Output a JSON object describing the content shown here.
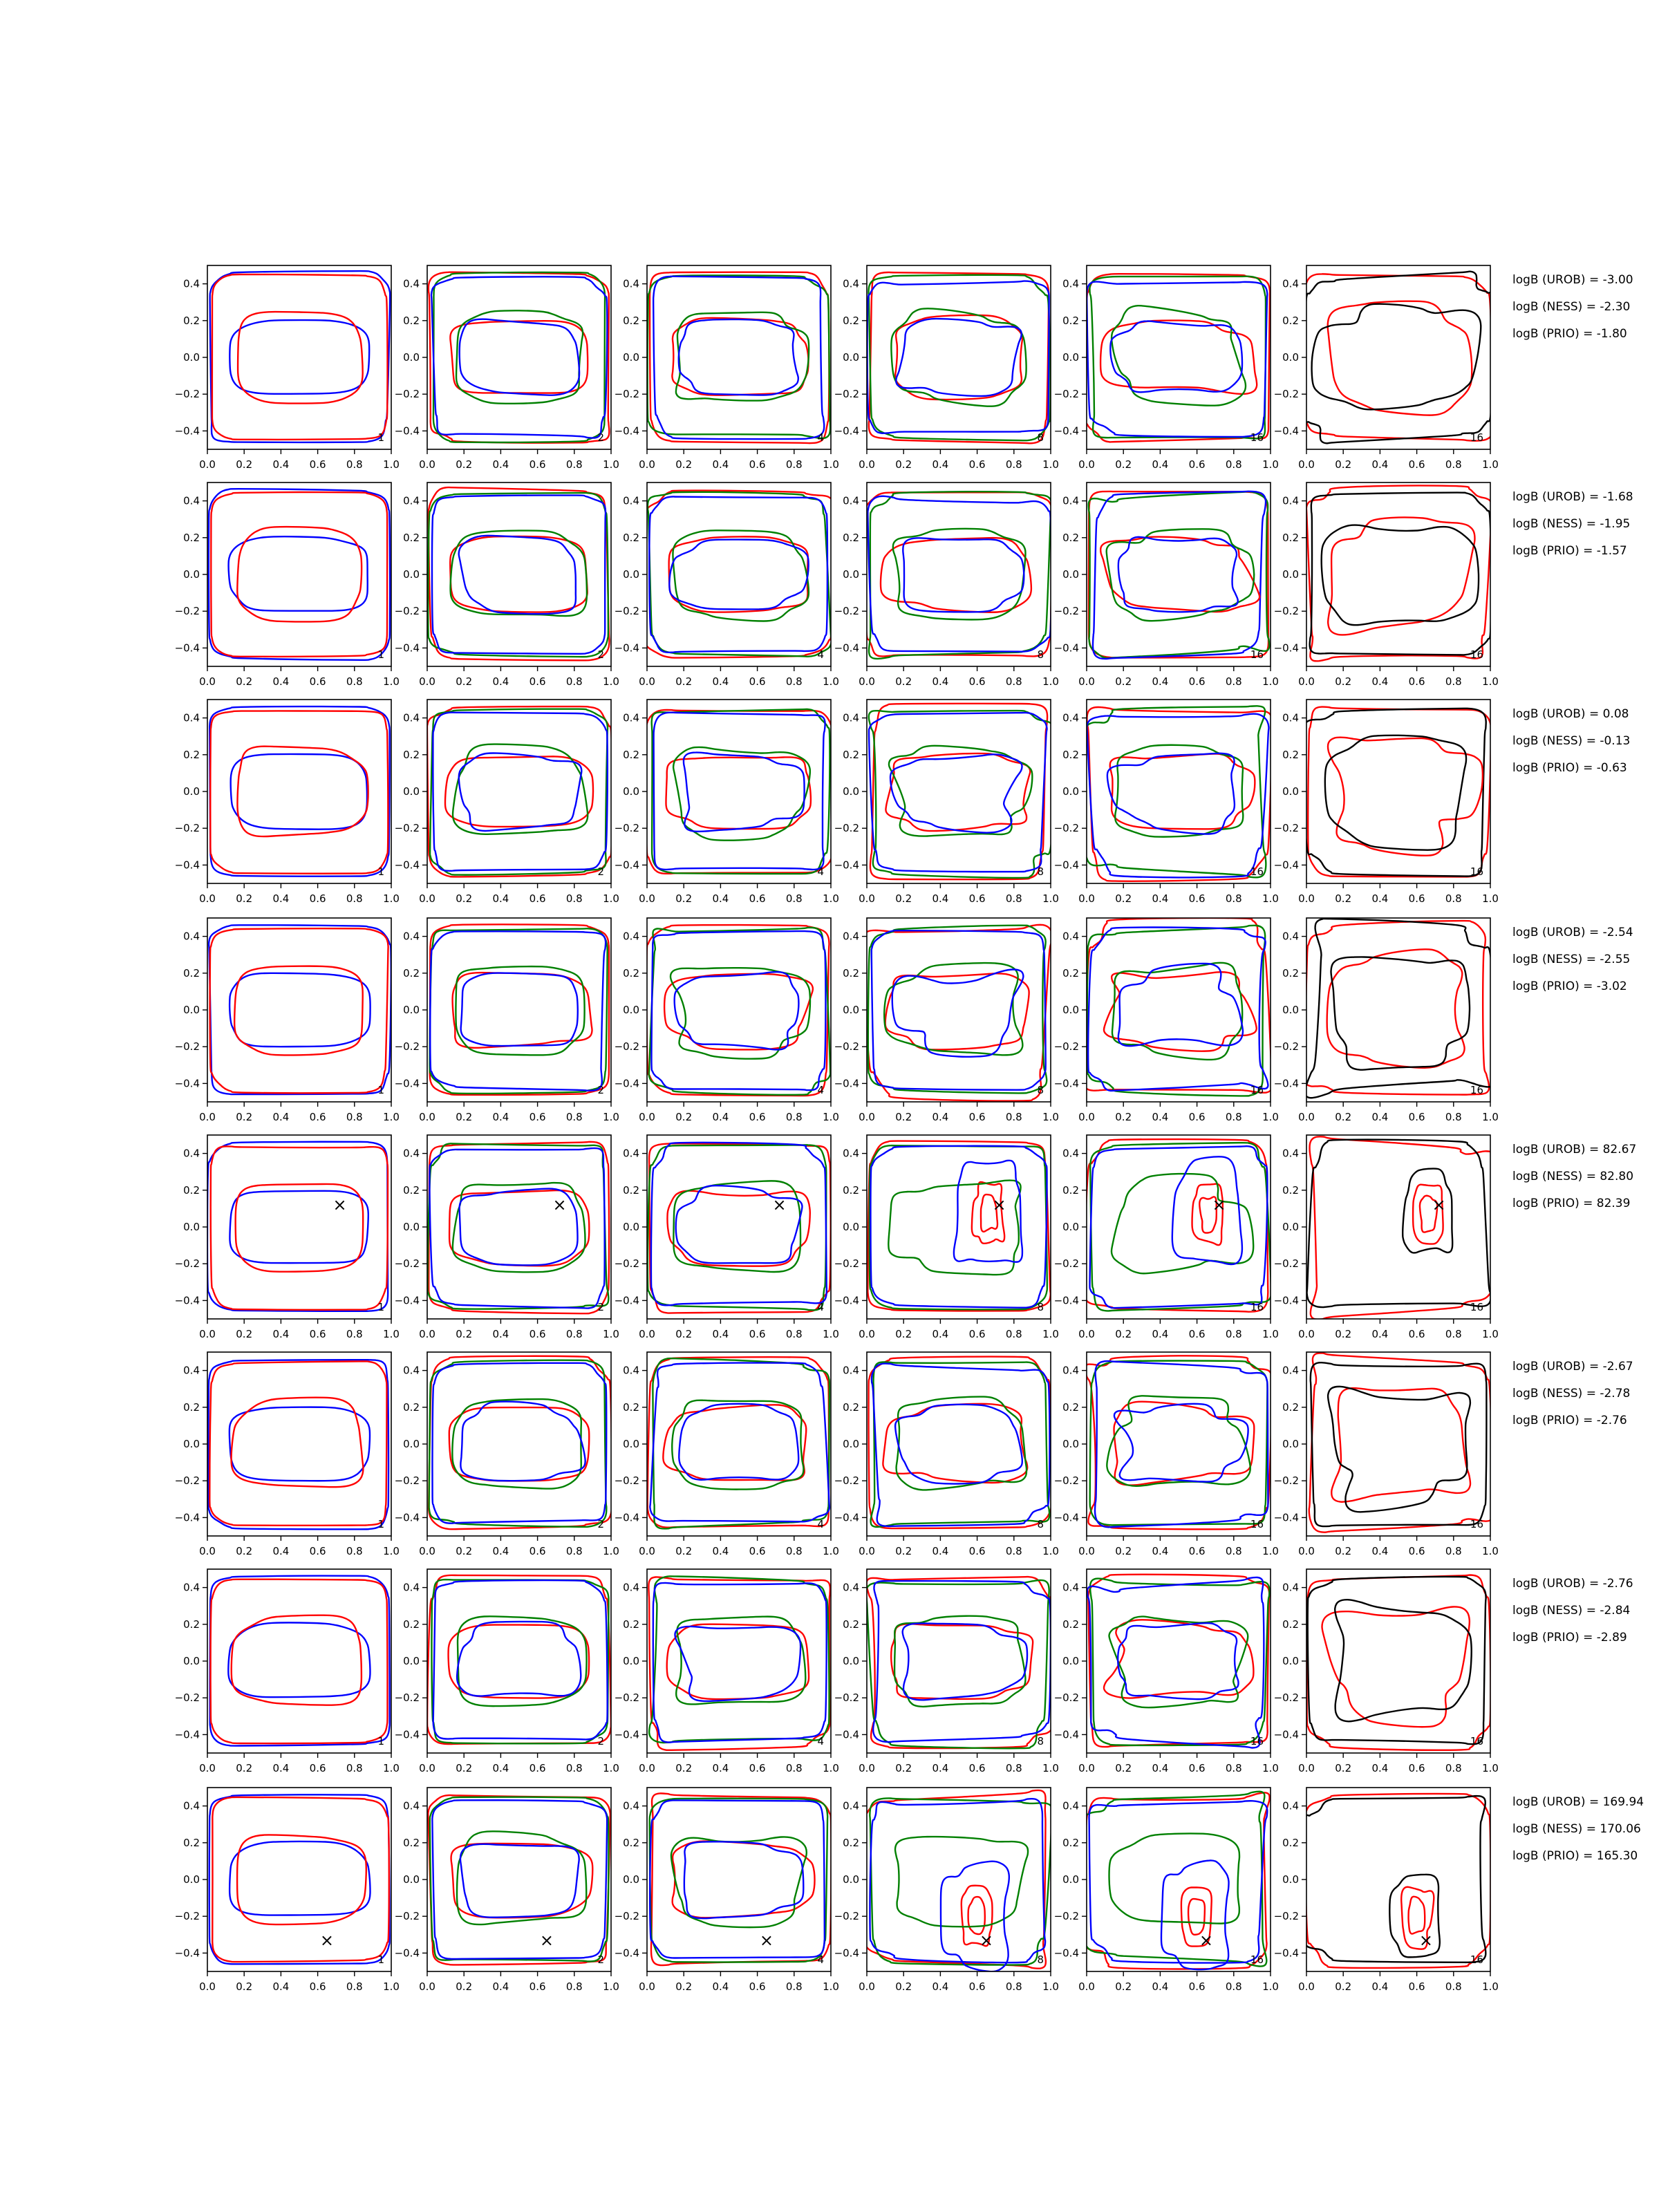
{
  "chart_data": {
    "type": "contour-grid",
    "rows": 8,
    "cols": 6,
    "xlim": [
      0.0,
      1.0
    ],
    "ylim": [
      -0.5,
      0.5
    ],
    "xticks": [
      "0.0",
      "0.2",
      "0.4",
      "0.6",
      "0.8",
      "1.0"
    ],
    "yticks": [
      {
        "v": 0.4,
        "label": "0.4"
      },
      {
        "v": 0.2,
        "label": "0.2"
      },
      {
        "v": 0.0,
        "label": "0.0"
      },
      {
        "v": -0.2,
        "label": "−0.2"
      },
      {
        "v": -0.4,
        "label": "−0.4"
      }
    ],
    "panel_labels": [
      "1",
      "2",
      "4",
      "8",
      "16",
      "16"
    ],
    "colors": {
      "red": "#ff0000",
      "green": "#008000",
      "blue": "#0000ff",
      "black": "#000000"
    },
    "marker": "×",
    "row_annotations": [
      {
        "urob": "logB (UROB) = -3.00",
        "ness": "logB (NESS) = -2.30",
        "prio": "logB (PRIO) = -1.80",
        "marker": null
      },
      {
        "urob": "logB (UROB) = -1.68",
        "ness": "logB (NESS) = -1.95",
        "prio": "logB (PRIO) = -1.57",
        "marker": null
      },
      {
        "urob": "logB (UROB) = 0.08",
        "ness": "logB (NESS) = -0.13",
        "prio": "logB (PRIO) = -0.63",
        "marker": null
      },
      {
        "urob": "logB (UROB) = -2.54",
        "ness": "logB (NESS) = -2.55",
        "prio": "logB (PRIO) = -3.02",
        "marker": null
      },
      {
        "urob": "logB (UROB) = 82.67",
        "ness": "logB (NESS) = 82.80",
        "prio": "logB (PRIO) = 82.39",
        "marker": [
          0.72,
          0.12
        ]
      },
      {
        "urob": "logB (UROB) = -2.67",
        "ness": "logB (NESS) = -2.78",
        "prio": "logB (PRIO) = -2.76",
        "marker": null
      },
      {
        "urob": "logB (UROB) = -2.76",
        "ness": "logB (NESS) = -2.84",
        "prio": "logB (PRIO) = -2.89",
        "marker": null
      },
      {
        "urob": "logB (UROB) = 169.94",
        "ness": "logB (NESS) = 170.06",
        "prio": "logB (PRIO) = 165.30",
        "marker": [
          0.65,
          -0.33
        ]
      }
    ]
  }
}
